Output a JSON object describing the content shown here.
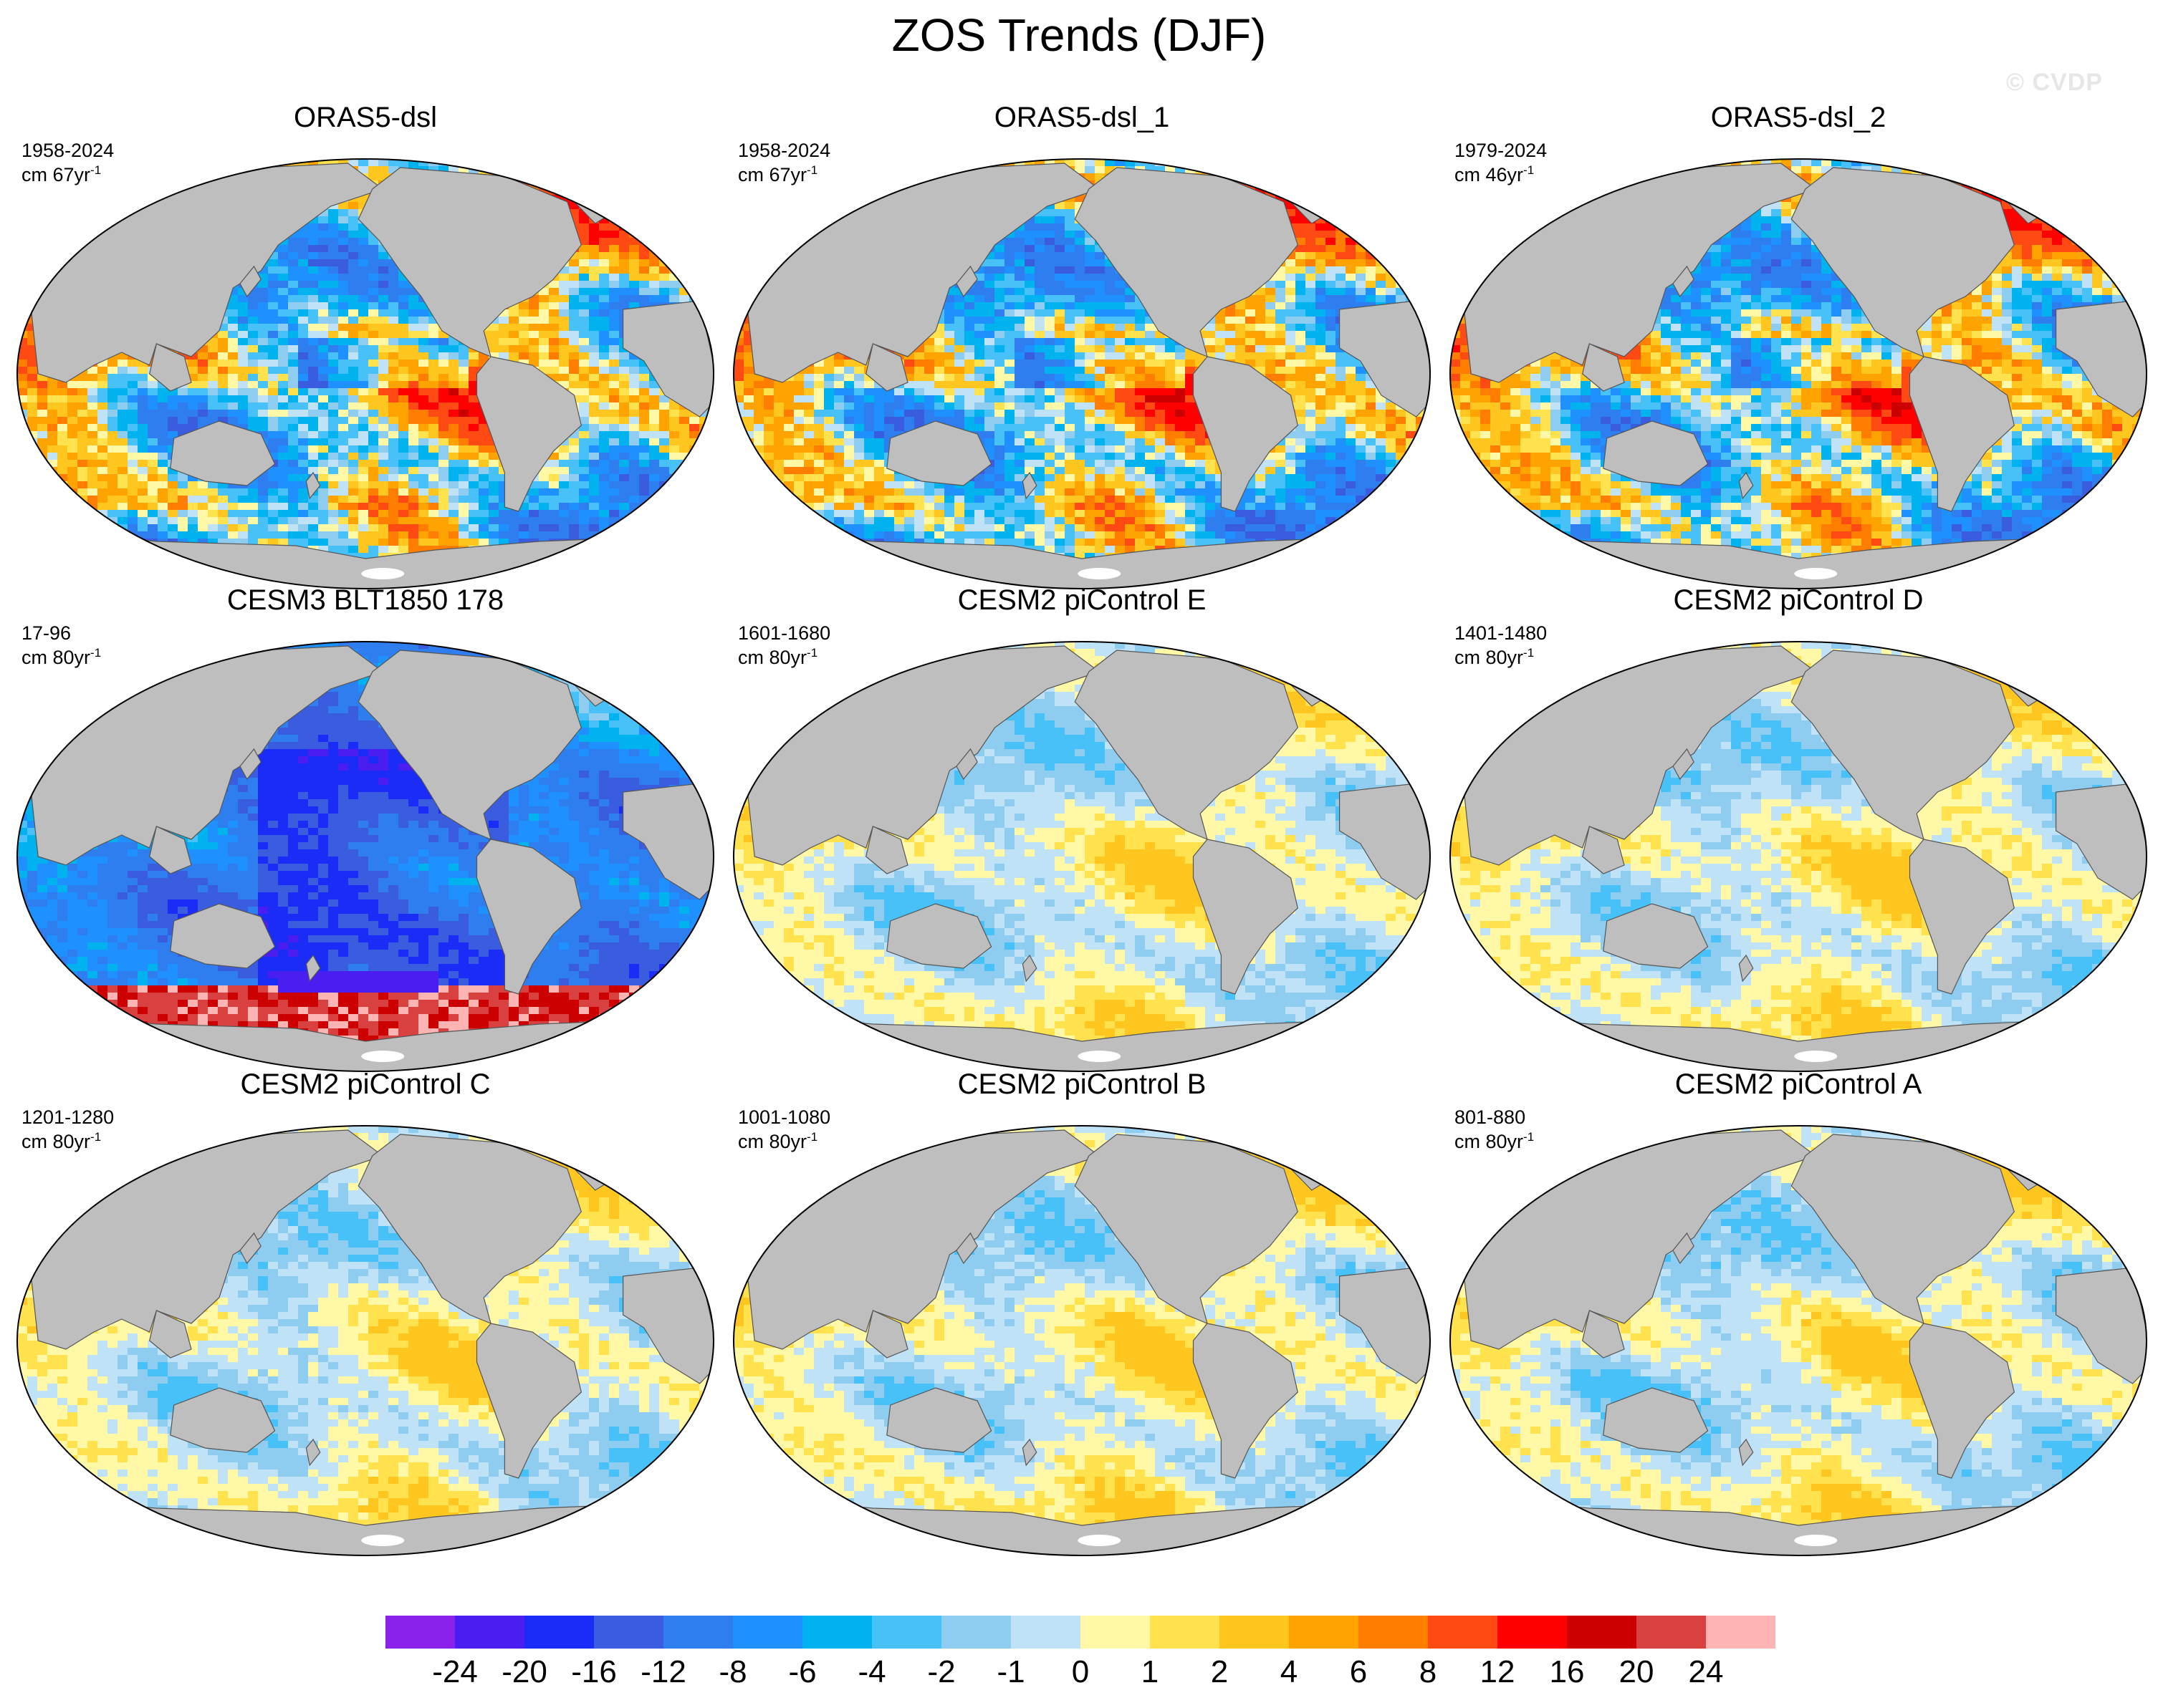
{
  "figure": {
    "title": "ZOS Trends (DJF)",
    "watermark": "© CVDP"
  },
  "colors": {
    "land": "#bebebe",
    "coastline": "#555555",
    "border": "#000000"
  },
  "panels": [
    {
      "title": "ORAS5-dsl",
      "period": "1958-2024",
      "units": "cm 67yr",
      "units_exp": "-1",
      "style": "strong",
      "bias": 0.05
    },
    {
      "title": "ORAS5-dsl_1",
      "period": "1958-2024",
      "units": "cm 67yr",
      "units_exp": "-1",
      "style": "strong",
      "bias": 0.05
    },
    {
      "title": "ORAS5-dsl_2",
      "period": "1979-2024",
      "units": "cm 46yr",
      "units_exp": "-1",
      "style": "strong",
      "bias": 0.1
    },
    {
      "title": "CESM3 BLT1850 178",
      "period": "17-96",
      "units": "cm 80yr",
      "units_exp": "-1",
      "style": "cesm3",
      "bias": -0.3
    },
    {
      "title": "CESM2 piControl E",
      "period": "1601-1680",
      "units": "cm 80yr",
      "units_exp": "-1",
      "style": "weak",
      "bias": 0.0
    },
    {
      "title": "CESM2 piControl D",
      "period": "1401-1480",
      "units": "cm 80yr",
      "units_exp": "-1",
      "style": "weak",
      "bias": 0.05
    },
    {
      "title": "CESM2 piControl C",
      "period": "1201-1280",
      "units": "cm 80yr",
      "units_exp": "-1",
      "style": "weak",
      "bias": 0.0
    },
    {
      "title": "CESM2 piControl B",
      "period": "1001-1080",
      "units": "cm 80yr",
      "units_exp": "-1",
      "style": "weak",
      "bias": 0.05
    },
    {
      "title": "CESM2 piControl A",
      "period": "801-880",
      "units": "cm 80yr",
      "units_exp": "-1",
      "style": "weak",
      "bias": 0.0
    }
  ],
  "colorbar": {
    "labels": [
      "-24",
      "-20",
      "-16",
      "-12",
      "-8",
      "-6",
      "-4",
      "-2",
      "-1",
      "0",
      "1",
      "2",
      "4",
      "6",
      "8",
      "12",
      "16",
      "20",
      "24"
    ],
    "colors": [
      "#8a22ec",
      "#4a1ef0",
      "#1a2cf5",
      "#3a5de0",
      "#2f7ef0",
      "#1e90ff",
      "#00b2ee",
      "#48c0f8",
      "#8fcdf0",
      "#bfe2f6",
      "#fff8a6",
      "#ffe24d",
      "#ffc61f",
      "#ffa300",
      "#ff7d00",
      "#ff4a14",
      "#ff0000",
      "#cc0000",
      "#d94040",
      "#ffb4b4"
    ]
  }
}
